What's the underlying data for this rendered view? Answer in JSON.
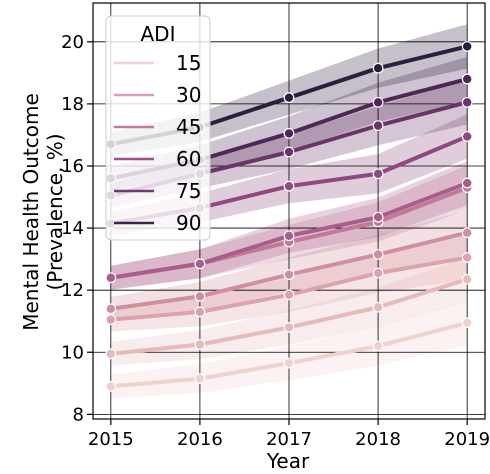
{
  "chart_data": {
    "type": "line",
    "xlabel": "Year",
    "ylabel_lines": [
      "Mental Health Outcome",
      "(Prevalence, %)"
    ],
    "x": [
      2015,
      2016,
      2017,
      2018,
      2019
    ],
    "x_ticks": [
      "2015",
      "2016",
      "2017",
      "2018",
      "2019"
    ],
    "y_ticks": [
      "8",
      "10",
      "12",
      "14",
      "16",
      "18",
      "20"
    ],
    "ylim": [
      7.85,
      21.25
    ],
    "grid": true,
    "legend": {
      "title": "ADI",
      "placement": "top-left",
      "entries": [
        "15",
        "30",
        "45",
        "60",
        "75",
        "90"
      ],
      "colors": [
        "#f0d0d0",
        "#dca0ad",
        "#c27a95",
        "#9d5283",
        "#6f3a6f",
        "#3d2248"
      ]
    },
    "band_halfwidth": 0.55,
    "series": [
      {
        "values": [
          8.9,
          9.15,
          9.65,
          10.2,
          10.95
        ],
        "color": "#efd1cd"
      },
      {
        "values": [
          9.95,
          10.25,
          10.8,
          11.45,
          12.35
        ],
        "color": "#e7b9b9"
      },
      {
        "values": [
          11.05,
          11.3,
          11.85,
          12.55,
          13.05
        ],
        "color": "#dda2aa"
      },
      {
        "values": [
          11.4,
          11.8,
          12.5,
          13.15,
          13.85
        ],
        "color": "#d08f9f"
      },
      {
        "values": [
          12.4,
          12.85,
          13.55,
          14.2,
          15.3
        ],
        "color": "#c07a98"
      },
      {
        "values": [
          12.4,
          12.85,
          13.75,
          14.35,
          15.45
        ],
        "color": "#a85d8a"
      },
      {
        "values": [
          14.15,
          14.65,
          15.35,
          15.75,
          16.95
        ],
        "color": "#8e4a80"
      },
      {
        "values": [
          15.05,
          15.75,
          16.45,
          17.3,
          18.05
        ],
        "color": "#693468"
      },
      {
        "values": [
          15.6,
          16.2,
          17.05,
          18.05,
          18.8
        ],
        "color": "#4e2758"
      },
      {
        "values": [
          16.7,
          17.25,
          18.2,
          19.15,
          19.85
        ],
        "color": "#2d1e3e"
      }
    ]
  }
}
